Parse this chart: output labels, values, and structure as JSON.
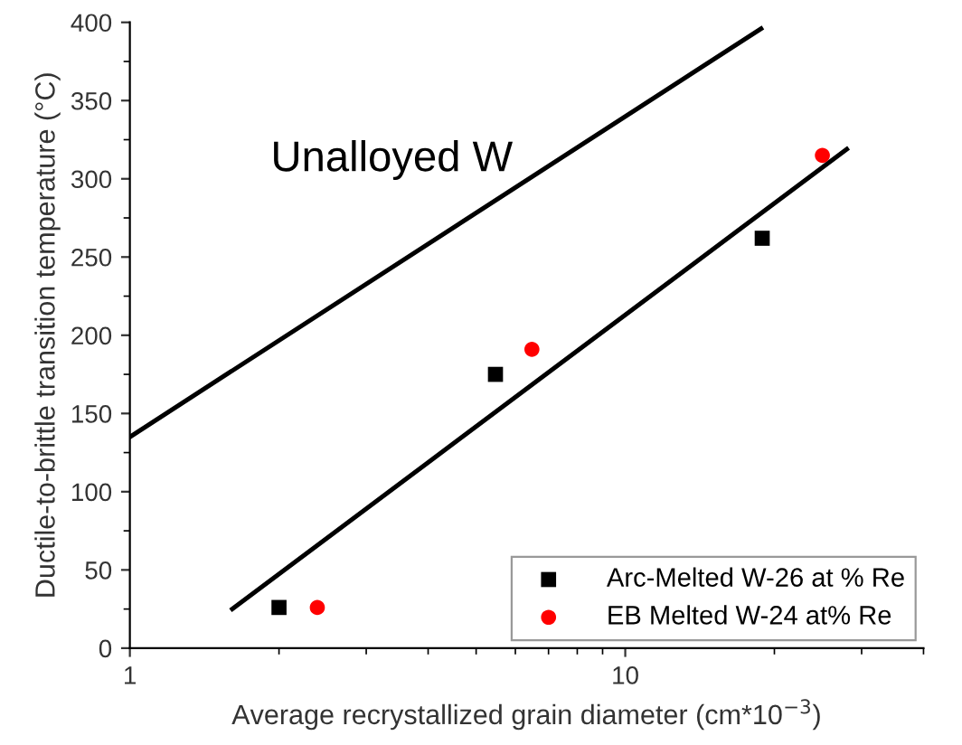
{
  "chart_data": {
    "type": "scatter",
    "xlabel": "Average recrystallized grain diameter (cm*10$^{−3}$)",
    "ylabel": "Ductile-to-brittle transition temperature (°C)",
    "log": "x",
    "xlim": [
      1,
      40
    ],
    "xticks": [
      1,
      10
    ],
    "ylim": [
      0,
      400
    ],
    "yticks": [
      0,
      50,
      100,
      150,
      200,
      250,
      300,
      350,
      400
    ],
    "grid": false,
    "legend": "bottom right",
    "annotations": [
      "Unalloyed W"
    ],
    "series": [
      {
        "name": "Arc-Melted W-26 at % Re",
        "marker": "square",
        "color": "#000000",
        "x": [
          2.0,
          5.47,
          18.9
        ],
        "values": [
          26,
          175,
          262
        ]
      },
      {
        "name": "EB Melted W-24 at% Re",
        "marker": "circle",
        "color": "#ff0000",
        "x": [
          2.39,
          6.48,
          25.0
        ],
        "values": [
          26,
          191,
          315
        ]
      },
      {
        "type": "line",
        "color": "#000000",
        "x": [
          1,
          18.8
        ],
        "values": [
          135,
          396
        ]
      },
      {
        "type": "line",
        "color": "#000000",
        "x": [
          1.61,
          28.0
        ],
        "values": [
          25,
          319
        ]
      }
    ]
  }
}
